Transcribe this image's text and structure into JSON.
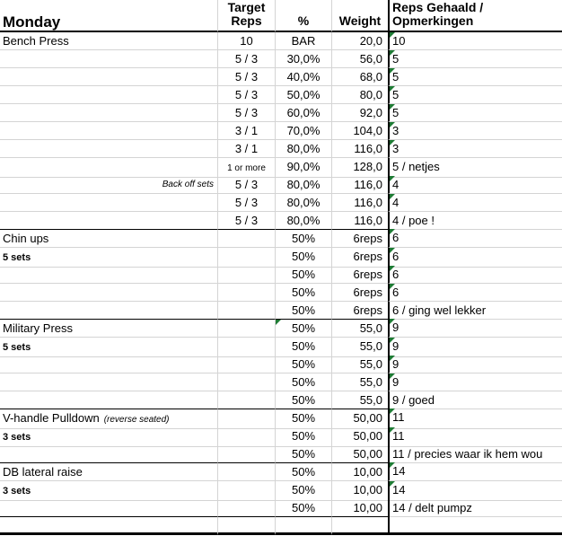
{
  "header": {
    "day": "Monday",
    "target_reps_1": "Target",
    "target_reps_2": "Reps",
    "percent": "%",
    "weight": "Weight",
    "reps_1": "Reps Gehaald /",
    "reps_2": "Opmerkingen"
  },
  "colors": {
    "flag": "#1e7b34",
    "gridline": "#d4d4d4"
  },
  "rows": [
    {
      "a": "Bench Press",
      "a_style": "normal",
      "b": "10",
      "c": "BAR",
      "d": "20,0",
      "e": "10",
      "e_flag": true,
      "group_start": false
    },
    {
      "a": "",
      "b": "5 / 3",
      "c": "30,0%",
      "d": "56,0",
      "e": "5",
      "e_flag": true
    },
    {
      "a": "",
      "b": "5 / 3",
      "c": "40,0%",
      "d": "68,0",
      "e": "5",
      "e_flag": true
    },
    {
      "a": "",
      "b": "5 / 3",
      "c": "50,0%",
      "d": "80,0",
      "e": "5",
      "e_flag": true
    },
    {
      "a": "",
      "b": "5 / 3",
      "c": "60,0%",
      "d": "92,0",
      "e": "5",
      "e_flag": true
    },
    {
      "a": "",
      "b": "3 / 1",
      "c": "70,0%",
      "d": "104,0",
      "e": "3",
      "e_flag": true
    },
    {
      "a": "",
      "b": "3 / 1",
      "c": "80,0%",
      "d": "116,0",
      "e": "3",
      "e_flag": true
    },
    {
      "a": "",
      "b": "1 or more",
      "b_small": true,
      "c": "90,0%",
      "d": "128,0",
      "e": "5 / netjes",
      "e_flag": false
    },
    {
      "a": "Back off sets",
      "a_style": "right-ital",
      "b": "5 / 3",
      "c": "80,0%",
      "d": "116,0",
      "e": "4",
      "e_flag": true
    },
    {
      "a": "",
      "b": "5 / 3",
      "c": "80,0%",
      "d": "116,0",
      "e": "4",
      "e_flag": true
    },
    {
      "a": "",
      "b": "5 / 3",
      "c": "80,0%",
      "d": "116,0",
      "e": "4 / poe !",
      "e_flag": false
    },
    {
      "a": "Chin ups",
      "a_style": "normal",
      "b": "",
      "c": "50%",
      "d": "6reps",
      "e": "6",
      "e_flag": true,
      "group_start": true
    },
    {
      "a": "5 sets",
      "a_style": "bold",
      "b": "",
      "c": "50%",
      "d": "6reps",
      "e": "6",
      "e_flag": true
    },
    {
      "a": "",
      "b": "",
      "c": "50%",
      "d": "6reps",
      "e": "6",
      "e_flag": true
    },
    {
      "a": "",
      "b": "",
      "c": "50%",
      "d": "6reps",
      "e": "6",
      "e_flag": true
    },
    {
      "a": "",
      "b": "",
      "c": "50%",
      "d": "6reps",
      "e": "6 / ging wel lekker",
      "e_flag": false
    },
    {
      "a": "Military Press",
      "a_style": "normal",
      "b": "",
      "c": "50%",
      "c_flag": true,
      "d": "55,0",
      "e": "9",
      "e_flag": true,
      "group_start": true
    },
    {
      "a": "5 sets",
      "a_style": "bold",
      "b": "",
      "c": "50%",
      "d": "55,0",
      "e": "9",
      "e_flag": true
    },
    {
      "a": "",
      "b": "",
      "c": "50%",
      "d": "55,0",
      "e": "9",
      "e_flag": true
    },
    {
      "a": "",
      "b": "",
      "c": "50%",
      "d": "55,0",
      "e": "9",
      "e_flag": true
    },
    {
      "a": "",
      "b": "",
      "c": "50%",
      "d": "55,0",
      "e": "9 / goed",
      "e_flag": false
    },
    {
      "a": "V-handle Pulldown",
      "a_note": "(reverse seated)",
      "a_style": "normal",
      "b": "",
      "c": "50%",
      "d": "50,00",
      "e": "11",
      "e_flag": true,
      "group_start": true
    },
    {
      "a": "3 sets",
      "a_style": "bold",
      "b": "",
      "c": "50%",
      "d": "50,00",
      "e": "11",
      "e_flag": true
    },
    {
      "a": "",
      "b": "",
      "c": "50%",
      "d": "50,00",
      "e": "11 / precies waar ik hem wou",
      "e_flag": false
    },
    {
      "a": "DB lateral raise",
      "a_style": "normal",
      "b": "",
      "c": "50%",
      "d": "10,00",
      "e": "14",
      "e_flag": true,
      "group_start": true
    },
    {
      "a": "3 sets",
      "a_style": "bold",
      "b": "",
      "c": "50%",
      "d": "10,00",
      "e": "14",
      "e_flag": true
    },
    {
      "a": "",
      "b": "",
      "c": "50%",
      "d": "10,00",
      "e": "14 / delt pumpz",
      "e_flag": false
    },
    {
      "a": "",
      "b": "",
      "c": "",
      "d": "",
      "e": "",
      "group_start": true,
      "last": true
    }
  ]
}
